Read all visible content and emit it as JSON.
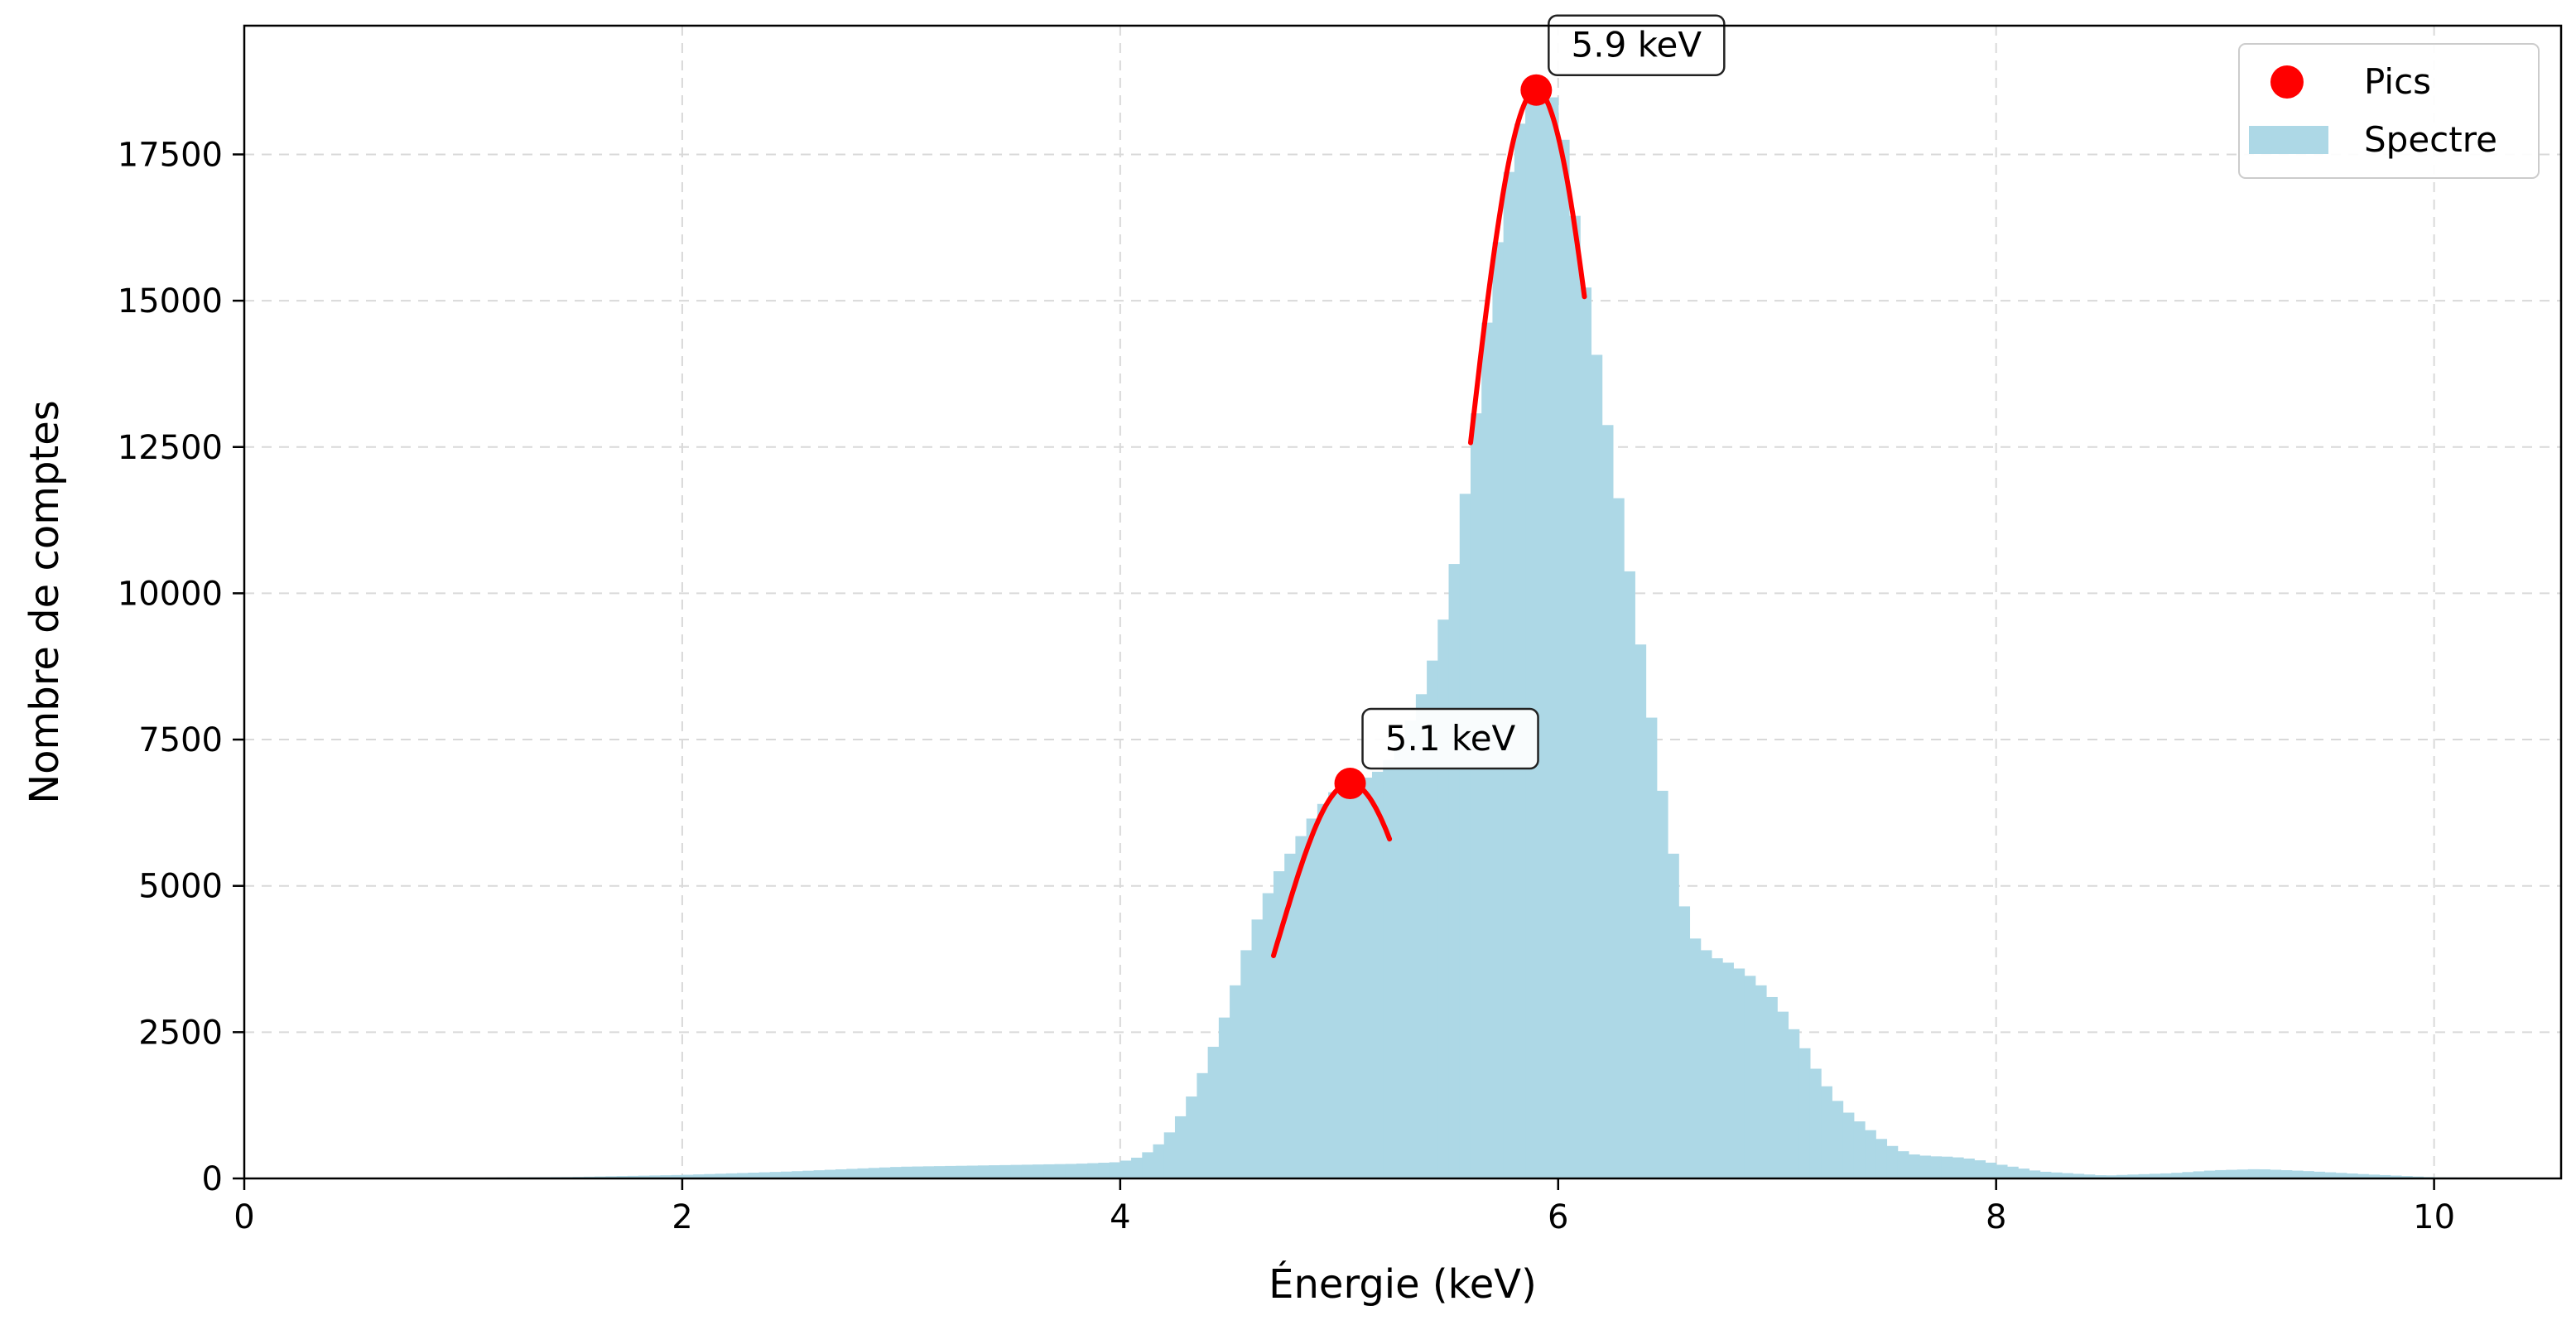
{
  "chart_data": {
    "type": "bar",
    "xlabel": "Énergie (keV)",
    "ylabel": "Nombre de comptes",
    "xlim": [
      0,
      10.58
    ],
    "ylim": [
      0,
      19700
    ],
    "grid": true,
    "legend_position": "top-right",
    "x_ticks": [
      0,
      2,
      4,
      6,
      8,
      10
    ],
    "x_tick_labels": [
      "0",
      "2",
      "4",
      "6",
      "8",
      "10"
    ],
    "y_ticks": [
      0,
      2500,
      5000,
      7500,
      10000,
      12500,
      15000,
      17500
    ],
    "y_tick_labels": [
      "0",
      "2500",
      "5000",
      "7500",
      "10000",
      "12500",
      "15000",
      "17500"
    ],
    "colors": {
      "histogram": "#add8e6",
      "peaks": "#ff0000",
      "fit": "#ff0000",
      "grid": "#d9d9d9"
    },
    "histogram": {
      "name": "Spectre",
      "bin_width": 0.05,
      "points": [
        [
          0,
          0
        ],
        [
          0.5,
          10
        ],
        [
          1.0,
          12
        ],
        [
          1.5,
          25
        ],
        [
          2.0,
          60
        ],
        [
          2.5,
          120
        ],
        [
          3.0,
          200
        ],
        [
          3.5,
          230
        ],
        [
          3.8,
          250
        ],
        [
          4.0,
          280
        ],
        [
          4.1,
          380
        ],
        [
          4.2,
          650
        ],
        [
          4.3,
          1200
        ],
        [
          4.4,
          2000
        ],
        [
          4.5,
          3000
        ],
        [
          4.6,
          4200
        ],
        [
          4.7,
          5100
        ],
        [
          4.8,
          5700
        ],
        [
          4.9,
          6300
        ],
        [
          5.0,
          6700
        ],
        [
          5.1,
          6800
        ],
        [
          5.2,
          7000
        ],
        [
          5.3,
          7600
        ],
        [
          5.4,
          8500
        ],
        [
          5.5,
          9900
        ],
        [
          5.6,
          12300
        ],
        [
          5.7,
          15400
        ],
        [
          5.8,
          17800
        ],
        [
          5.9,
          18700
        ],
        [
          6.0,
          18400
        ],
        [
          6.1,
          15800
        ],
        [
          6.2,
          13500
        ],
        [
          6.3,
          11000
        ],
        [
          6.4,
          8500
        ],
        [
          6.5,
          6000
        ],
        [
          6.6,
          4200
        ],
        [
          6.7,
          3800
        ],
        [
          6.8,
          3650
        ],
        [
          6.9,
          3400
        ],
        [
          7.0,
          3000
        ],
        [
          7.1,
          2400
        ],
        [
          7.2,
          1700
        ],
        [
          7.3,
          1200
        ],
        [
          7.4,
          900
        ],
        [
          7.5,
          600
        ],
        [
          7.6,
          420
        ],
        [
          7.7,
          380
        ],
        [
          7.8,
          370
        ],
        [
          7.9,
          330
        ],
        [
          8.0,
          250
        ],
        [
          8.2,
          120
        ],
        [
          8.5,
          50
        ],
        [
          8.8,
          90
        ],
        [
          9.0,
          140
        ],
        [
          9.2,
          160
        ],
        [
          9.4,
          130
        ],
        [
          9.7,
          70
        ],
        [
          10.0,
          20
        ],
        [
          10.58,
          5
        ]
      ]
    },
    "peaks": {
      "name": "Pics",
      "x": [
        5.05,
        5.9
      ],
      "y": [
        6750,
        18600
      ],
      "labels": [
        "5.1 keV",
        "5.9 keV"
      ]
    },
    "fits": [
      {
        "center": 5.05,
        "amplitude": 6750,
        "sigma": 0.327,
        "x_range": [
          4.7,
          5.23
        ]
      },
      {
        "center": 5.9,
        "amplitude": 18600,
        "sigma": 0.339,
        "x_range": [
          5.6,
          6.12
        ]
      }
    ],
    "legend": [
      {
        "label": "Pics",
        "kind": "marker"
      },
      {
        "label": "Spectre",
        "kind": "patch"
      }
    ]
  }
}
